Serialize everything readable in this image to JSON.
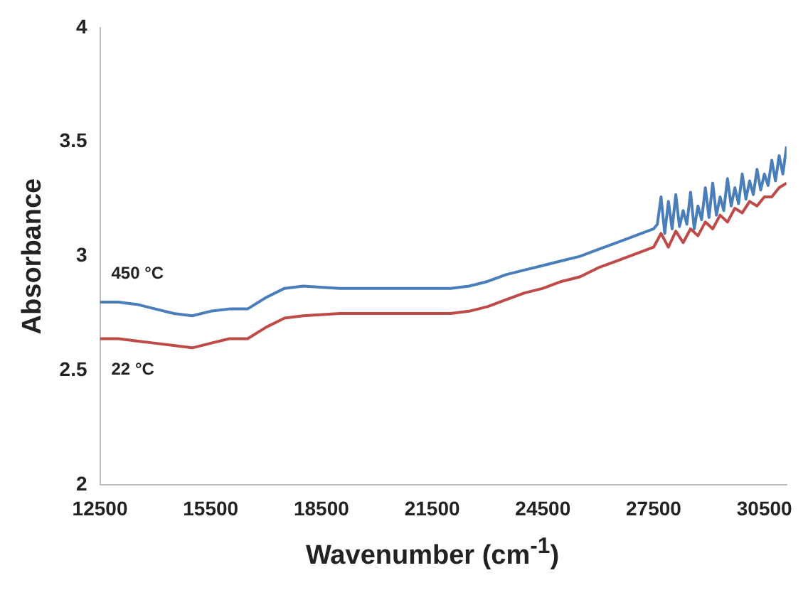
{
  "chart_data": {
    "type": "line",
    "xlabel": "Wavenumber (cm$^{-1}$)",
    "ylabel": "Absorbance",
    "xlim": [
      12500,
      31100
    ],
    "xticks": [
      12500,
      15500,
      18500,
      21500,
      24500,
      27500,
      30500
    ],
    "ylim": [
      2,
      4
    ],
    "yticks": [
      2,
      2.5,
      3,
      3.5,
      4
    ],
    "grid": false,
    "legend": false,
    "marker": "none",
    "line_style": "solid",
    "series": [
      {
        "name": "450 °C",
        "color": "#4a7ebb",
        "x": [
          12500,
          13000,
          13500,
          14000,
          14500,
          15000,
          15500,
          16000,
          16500,
          17000,
          17500,
          18000,
          19000,
          20000,
          21000,
          22000,
          22500,
          23000,
          23500,
          24000,
          24500,
          25000,
          25500,
          26000,
          26500,
          27000,
          27500,
          27600,
          27700,
          27800,
          27900,
          28000,
          28100,
          28200,
          28300,
          28400,
          28500,
          28600,
          28700,
          28800,
          28900,
          29000,
          29100,
          29200,
          29300,
          29400,
          29500,
          29600,
          29700,
          29800,
          29900,
          30000,
          30100,
          30200,
          30300,
          30400,
          30500,
          30600,
          30700,
          30800,
          30900,
          31000,
          31100
        ],
        "values": [
          2.8,
          2.8,
          2.79,
          2.77,
          2.75,
          2.74,
          2.76,
          2.77,
          2.77,
          2.82,
          2.86,
          2.87,
          2.86,
          2.86,
          2.86,
          2.86,
          2.87,
          2.89,
          2.92,
          2.94,
          2.96,
          2.98,
          3.0,
          3.03,
          3.06,
          3.09,
          3.12,
          3.14,
          3.26,
          3.1,
          3.24,
          3.12,
          3.27,
          3.13,
          3.2,
          3.14,
          3.28,
          3.12,
          3.22,
          3.16,
          3.3,
          3.17,
          3.32,
          3.18,
          3.26,
          3.2,
          3.34,
          3.22,
          3.3,
          3.23,
          3.36,
          3.25,
          3.33,
          3.27,
          3.38,
          3.29,
          3.36,
          3.31,
          3.42,
          3.33,
          3.44,
          3.36,
          3.48
        ]
      },
      {
        "name": "22 °C",
        "color": "#be4b48",
        "x": [
          12500,
          13000,
          13500,
          14000,
          14500,
          15000,
          15500,
          16000,
          16500,
          17000,
          17500,
          18000,
          19000,
          20000,
          21000,
          22000,
          22500,
          23000,
          23500,
          24000,
          24500,
          25000,
          25500,
          26000,
          26500,
          27000,
          27500,
          27700,
          27900,
          28100,
          28300,
          28500,
          28700,
          28900,
          29100,
          29300,
          29500,
          29700,
          29900,
          30100,
          30300,
          30500,
          30700,
          30900,
          31100
        ],
        "values": [
          2.64,
          2.64,
          2.63,
          2.62,
          2.61,
          2.6,
          2.62,
          2.64,
          2.64,
          2.69,
          2.73,
          2.74,
          2.75,
          2.75,
          2.75,
          2.75,
          2.76,
          2.78,
          2.81,
          2.84,
          2.86,
          2.89,
          2.91,
          2.95,
          2.98,
          3.01,
          3.04,
          3.1,
          3.04,
          3.11,
          3.06,
          3.12,
          3.09,
          3.15,
          3.12,
          3.18,
          3.15,
          3.21,
          3.19,
          3.24,
          3.22,
          3.26,
          3.26,
          3.3,
          3.32
        ]
      }
    ]
  }
}
